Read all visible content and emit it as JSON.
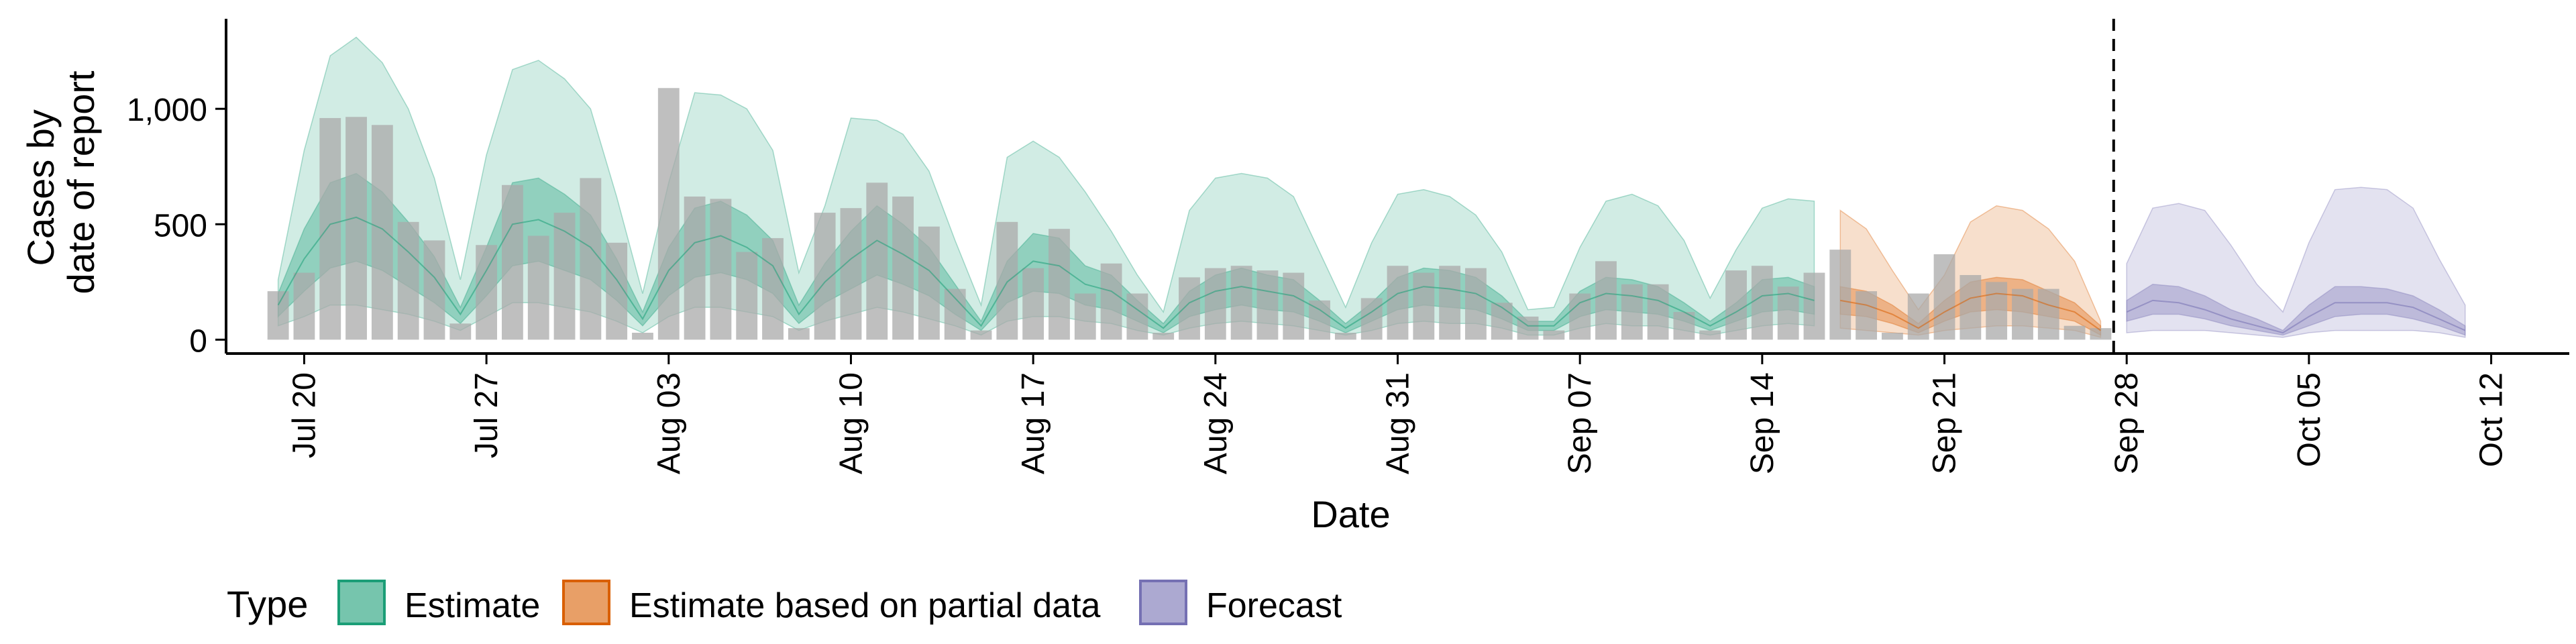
{
  "chart_data": {
    "type": "bar",
    "xlabel": "Date",
    "ylabel_lines": [
      "Cases by",
      "date of report"
    ],
    "ylim": [
      -60,
      1390
    ],
    "y_ticks": [
      0,
      500,
      1000
    ],
    "y_tick_labels": [
      "0",
      "500",
      "1,000"
    ],
    "x_axis_type": "date",
    "xlim": [
      "2020-07-17",
      "2020-10-15"
    ],
    "x_ticks": [
      "2020-07-20",
      "2020-07-27",
      "2020-08-03",
      "2020-08-10",
      "2020-08-17",
      "2020-08-24",
      "2020-08-31",
      "2020-09-07",
      "2020-09-14",
      "2020-09-21",
      "2020-09-28",
      "2020-10-05",
      "2020-10-12"
    ],
    "x_tick_labels": [
      "Jul 20",
      "Jul 27",
      "Aug 03",
      "Aug 10",
      "Aug 17",
      "Aug 24",
      "Aug 31",
      "Sep 07",
      "Sep 14",
      "Sep 21",
      "Sep 28",
      "Oct 05",
      "Oct 12"
    ],
    "vline_date": "2020-09-27",
    "grid": false,
    "legend_position": "bottom",
    "legend_title": "Type",
    "colors": {
      "Estimate": "#1b9e77",
      "Estimate based on partial data": "#d95f02",
      "Forecast": "#7570b3",
      "bars": "#a9a9a9"
    },
    "bars": {
      "dates": [
        "2020-07-19",
        "2020-07-20",
        "2020-07-21",
        "2020-07-22",
        "2020-07-23",
        "2020-07-24",
        "2020-07-25",
        "2020-07-26",
        "2020-07-27",
        "2020-07-28",
        "2020-07-29",
        "2020-07-30",
        "2020-07-31",
        "2020-08-01",
        "2020-08-02",
        "2020-08-03",
        "2020-08-04",
        "2020-08-05",
        "2020-08-06",
        "2020-08-07",
        "2020-08-08",
        "2020-08-09",
        "2020-08-10",
        "2020-08-11",
        "2020-08-12",
        "2020-08-13",
        "2020-08-14",
        "2020-08-15",
        "2020-08-16",
        "2020-08-17",
        "2020-08-18",
        "2020-08-19",
        "2020-08-20",
        "2020-08-21",
        "2020-08-22",
        "2020-08-23",
        "2020-08-24",
        "2020-08-25",
        "2020-08-26",
        "2020-08-27",
        "2020-08-28",
        "2020-08-29",
        "2020-08-30",
        "2020-08-31",
        "2020-09-01",
        "2020-09-02",
        "2020-09-03",
        "2020-09-04",
        "2020-09-05",
        "2020-09-06",
        "2020-09-07",
        "2020-09-08",
        "2020-09-09",
        "2020-09-10",
        "2020-09-11",
        "2020-09-12",
        "2020-09-13",
        "2020-09-14",
        "2020-09-15",
        "2020-09-16",
        "2020-09-17",
        "2020-09-18",
        "2020-09-19",
        "2020-09-20",
        "2020-09-21",
        "2020-09-22",
        "2020-09-23",
        "2020-09-24",
        "2020-09-25",
        "2020-09-26",
        "2020-09-27"
      ],
      "values": [
        210,
        290,
        960,
        965,
        930,
        510,
        430,
        70,
        410,
        670,
        450,
        550,
        700,
        420,
        30,
        1090,
        620,
        610,
        380,
        440,
        50,
        550,
        570,
        680,
        620,
        490,
        220,
        40,
        510,
        310,
        480,
        200,
        330,
        200,
        30,
        270,
        310,
        320,
        300,
        290,
        170,
        30,
        180,
        320,
        290,
        320,
        310,
        160,
        100,
        40,
        200,
        340,
        240,
        240,
        120,
        40,
        300,
        320,
        230,
        290,
        390,
        210,
        30,
        200,
        370,
        280,
        250,
        220,
        220,
        60,
        50
      ]
    },
    "ribbons": [
      {
        "type": "Estimate",
        "dates": [
          "2020-07-19",
          "2020-07-20",
          "2020-07-21",
          "2020-07-22",
          "2020-07-23",
          "2020-07-24",
          "2020-07-25",
          "2020-07-26",
          "2020-07-27",
          "2020-07-28",
          "2020-07-29",
          "2020-07-30",
          "2020-07-31",
          "2020-08-01",
          "2020-08-02",
          "2020-08-03",
          "2020-08-04",
          "2020-08-05",
          "2020-08-06",
          "2020-08-07",
          "2020-08-08",
          "2020-08-09",
          "2020-08-10",
          "2020-08-11",
          "2020-08-12",
          "2020-08-13",
          "2020-08-14",
          "2020-08-15",
          "2020-08-16",
          "2020-08-17",
          "2020-08-18",
          "2020-08-19",
          "2020-08-20",
          "2020-08-21",
          "2020-08-22",
          "2020-08-23",
          "2020-08-24",
          "2020-08-25",
          "2020-08-26",
          "2020-08-27",
          "2020-08-28",
          "2020-08-29",
          "2020-08-30",
          "2020-08-31",
          "2020-09-01",
          "2020-09-02",
          "2020-09-03",
          "2020-09-04",
          "2020-09-05",
          "2020-09-06",
          "2020-09-07",
          "2020-09-08",
          "2020-09-09",
          "2020-09-10",
          "2020-09-11",
          "2020-09-12",
          "2020-09-13",
          "2020-09-14",
          "2020-09-15",
          "2020-09-16"
        ],
        "median": [
          150,
          350,
          500,
          530,
          480,
          380,
          270,
          110,
          300,
          500,
          520,
          470,
          400,
          260,
          90,
          300,
          420,
          450,
          400,
          320,
          110,
          250,
          350,
          430,
          370,
          300,
          180,
          60,
          250,
          340,
          320,
          240,
          210,
          130,
          50,
          160,
          210,
          230,
          210,
          190,
          130,
          50,
          120,
          200,
          230,
          220,
          200,
          140,
          60,
          60,
          160,
          200,
          190,
          170,
          120,
          60,
          120,
          190,
          200,
          170
        ],
        "bands": [
          {
            "lo": [
              100,
              210,
              310,
              340,
              300,
              230,
              160,
              70,
              190,
              320,
              340,
              300,
              260,
              170,
              60,
              190,
              270,
              290,
              260,
              200,
              70,
              160,
              220,
              280,
              240,
              190,
              110,
              40,
              160,
              210,
              200,
              150,
              130,
              80,
              30,
              100,
              130,
              150,
              130,
              120,
              80,
              30,
              80,
              130,
              150,
              140,
              130,
              90,
              40,
              40,
              100,
              130,
              120,
              110,
              80,
              40,
              80,
              120,
              130,
              110
            ],
            "hi": [
              200,
              480,
              680,
              720,
              640,
              510,
              360,
              140,
              400,
              680,
              700,
              630,
              540,
              350,
              120,
              400,
              570,
              600,
              540,
              430,
              150,
              330,
              470,
              580,
              500,
              400,
              240,
              80,
              340,
              460,
              440,
              320,
              280,
              170,
              70,
              210,
              280,
              310,
              280,
              260,
              170,
              70,
              160,
              270,
              310,
              300,
              270,
              190,
              80,
              80,
              210,
              270,
              260,
              230,
              160,
              80,
              160,
              260,
              270,
              230
            ]
          },
          {
            "lo": [
              60,
              100,
              150,
              150,
              130,
              110,
              80,
              40,
              100,
              160,
              160,
              140,
              120,
              80,
              30,
              100,
              140,
              140,
              120,
              100,
              40,
              80,
              110,
              140,
              120,
              90,
              60,
              20,
              80,
              100,
              100,
              80,
              70,
              40,
              20,
              50,
              70,
              80,
              70,
              60,
              40,
              20,
              40,
              70,
              80,
              70,
              70,
              50,
              20,
              20,
              50,
              70,
              60,
              60,
              40,
              20,
              40,
              60,
              70,
              60
            ],
            "hi": [
              260,
              820,
              1230,
              1310,
              1200,
              1000,
              700,
              260,
              800,
              1170,
              1210,
              1130,
              1000,
              620,
              200,
              680,
              1070,
              1060,
              1000,
              820,
              290,
              580,
              960,
              950,
              890,
              730,
              430,
              150,
              790,
              860,
              790,
              640,
              470,
              280,
              120,
              560,
              700,
              720,
              700,
              620,
              380,
              140,
              420,
              630,
              650,
              620,
              540,
              380,
              130,
              140,
              400,
              600,
              630,
              580,
              430,
              180,
              390,
              570,
              610,
              600
            ]
          }
        ]
      },
      {
        "type": "Estimate based on partial data",
        "dates": [
          "2020-09-17",
          "2020-09-18",
          "2020-09-19",
          "2020-09-20",
          "2020-09-21",
          "2020-09-22",
          "2020-09-23",
          "2020-09-24",
          "2020-09-25",
          "2020-09-26",
          "2020-09-27"
        ],
        "median": [
          170,
          150,
          110,
          50,
          120,
          180,
          200,
          190,
          150,
          120,
          40
        ],
        "bands": [
          {
            "lo": [
              110,
              100,
              70,
              30,
              80,
              120,
              130,
              120,
              100,
              80,
              20
            ],
            "hi": [
              230,
              210,
              150,
              70,
              170,
              250,
              270,
              260,
              210,
              160,
              60
            ]
          },
          {
            "lo": [
              50,
              40,
              30,
              20,
              40,
              50,
              60,
              60,
              50,
              40,
              10
            ],
            "hi": [
              560,
              480,
              300,
              130,
              280,
              510,
              580,
              560,
              480,
              340,
              80
            ]
          }
        ]
      },
      {
        "type": "Forecast",
        "dates": [
          "2020-09-28",
          "2020-09-29",
          "2020-09-30",
          "2020-10-01",
          "2020-10-02",
          "2020-10-03",
          "2020-10-04",
          "2020-10-05",
          "2020-10-06",
          "2020-10-07",
          "2020-10-08",
          "2020-10-09",
          "2020-10-10",
          "2020-10-11"
        ],
        "median": [
          120,
          170,
          160,
          130,
          90,
          60,
          30,
          100,
          160,
          160,
          160,
          140,
          90,
          40
        ],
        "bands": [
          {
            "lo": [
              80,
              110,
              110,
              90,
              60,
              40,
              20,
              60,
              100,
              110,
              110,
              90,
              60,
              20
            ],
            "hi": [
              170,
              240,
              230,
              190,
              130,
              90,
              40,
              150,
              230,
              230,
              220,
              190,
              130,
              60
            ]
          },
          {
            "lo": [
              30,
              40,
              40,
              40,
              30,
              20,
              10,
              30,
              40,
              40,
              40,
              40,
              30,
              10
            ],
            "hi": [
              330,
              570,
              590,
              560,
              410,
              240,
              120,
              420,
              650,
              660,
              650,
              570,
              350,
              150
            ]
          }
        ]
      }
    ]
  }
}
